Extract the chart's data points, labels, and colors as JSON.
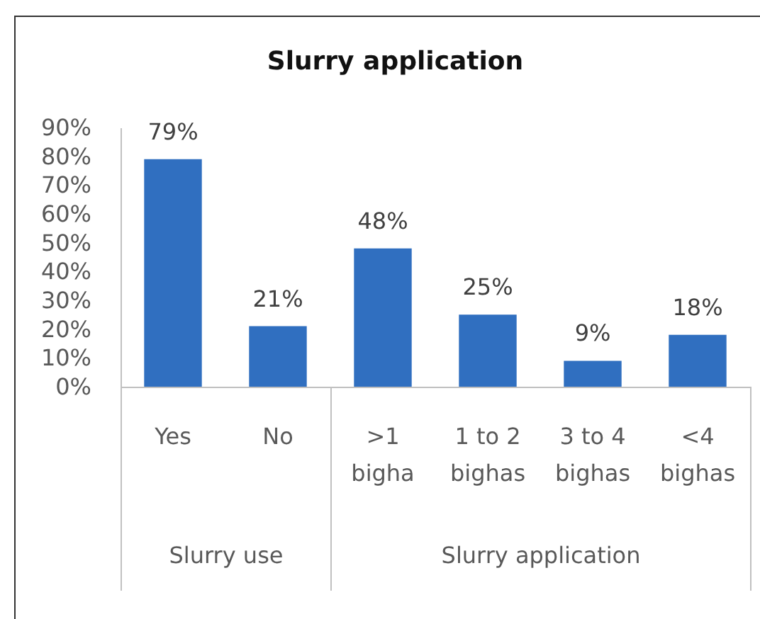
{
  "chart_data": [
    {
      "type": "bar",
      "xlabel": "Slurry use",
      "categories": [
        "Yes",
        "No"
      ],
      "values": [
        79,
        21
      ],
      "color": "#306fc0",
      "value_labels": [
        "79%",
        "21%"
      ],
      "ylim": [
        0,
        90
      ],
      "yticks": [
        {
          "value": 0,
          "label": "0%"
        },
        {
          "value": 10,
          "label": "10%"
        },
        {
          "value": 20,
          "label": "20%"
        },
        {
          "value": 30,
          "label": "30%"
        },
        {
          "value": 40,
          "label": "40%"
        },
        {
          "value": 50,
          "label": "50%"
        },
        {
          "value": 60,
          "label": "60%"
        },
        {
          "value": 70,
          "label": "70%"
        },
        {
          "value": 80,
          "label": "80%"
        },
        {
          "value": 90,
          "label": "90%"
        }
      ]
    },
    {
      "type": "bar",
      "title": "Slurry application",
      "xlabel": "Slurry application",
      "categories": [
        ">1 bigha",
        "1 to 2 bighas",
        "3 to 4 bighas",
        "<4 bighas"
      ],
      "values": [
        48,
        25,
        9,
        18
      ],
      "color": "#306fc0",
      "value_labels": [
        "48%",
        "25%",
        "9%",
        "18%"
      ],
      "tick_labels": "x"
    }
  ]
}
